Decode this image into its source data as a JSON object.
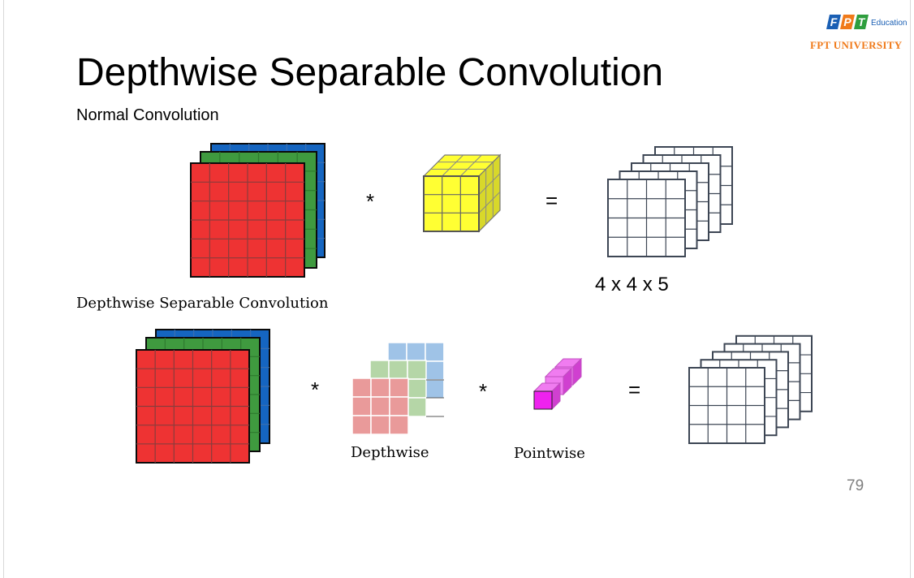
{
  "slide": {
    "title": "Depthwise Separable Convolution",
    "normal_label": "Normal Convolution",
    "separable_label": "Depthwise Separable Convolution",
    "page_number": "79"
  },
  "logo": {
    "brand_letters": [
      "F",
      "P",
      "T"
    ],
    "brand_colors": [
      "#1a5fb4",
      "#f07a1a",
      "#2e9e3e"
    ],
    "education": "Education",
    "university": "FPT UNIVERSITY"
  },
  "normal_row": {
    "op_multiply": "*",
    "op_equals": "=",
    "output_dims": "4 x 4 x 5"
  },
  "separable_row": {
    "op_multiply_1": "*",
    "op_multiply_2": "*",
    "op_equals": "=",
    "depthwise_label": "Depthwise",
    "pointwise_label": "Pointwise"
  },
  "colors": {
    "red": "#ee3333",
    "green": "#3f9a3f",
    "blue": "#1565c0",
    "yellow": "#ffff33",
    "yellow_dark": "#d8d82a",
    "pale_red": "#e99a9a",
    "pale_green": "#b5d6a7",
    "pale_blue": "#9fc3e7",
    "magenta": "#ee22ee",
    "magenta_light": "#f07cf0",
    "output_stroke": "#3d4654"
  }
}
